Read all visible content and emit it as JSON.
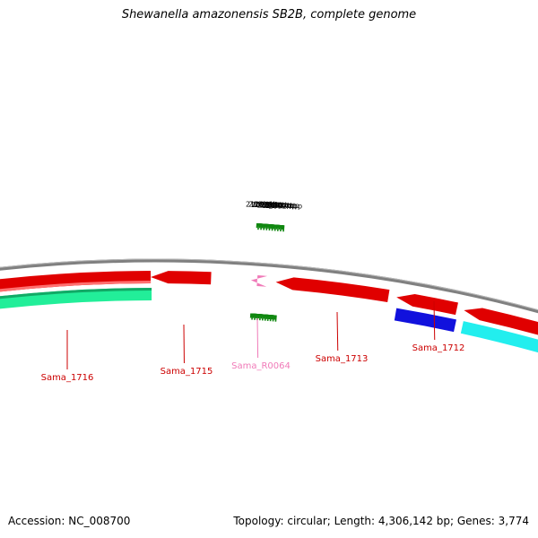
{
  "title": "Shewanella amazonensis SB2B, complete genome",
  "footer": {
    "accession": "Accession: NC_008700",
    "info": "Topology: circular; Length: 4,306,142 bp; Genes: 3,774"
  },
  "colors": {
    "backbone": "#808080",
    "tick": "#118811",
    "gene_forward": "#e00000",
    "gene_reverse_teal": "#22ee99",
    "gene_reverse_cyan": "#22eeee",
    "gene_blue": "#1111dd",
    "rna": "#f07ab8",
    "label_gene": "#cc0000",
    "label_rna": "#f07ab8"
  },
  "scale": {
    "unit": "kbp",
    "labels": [
      {
        "kbp": 2100,
        "text": "2100 kbp"
      },
      {
        "kbp": 2099,
        "text": "2099 kbp"
      },
      {
        "kbp": 2098,
        "text": "2098 kbp"
      },
      {
        "kbp": 2097,
        "text": "2097 kbp"
      },
      {
        "kbp": 2096,
        "text": "2096 kbp"
      },
      {
        "kbp": 2095,
        "text": "2095 kbp"
      },
      {
        "kbp": 2094,
        "text": "2094 kbp"
      },
      {
        "kbp": 2093,
        "text": "2093 kbp"
      },
      {
        "kbp": 2092,
        "text": "2092 kbp"
      }
    ]
  },
  "genes": [
    {
      "label": "Sama_1716",
      "type": "gene",
      "strand": "forward"
    },
    {
      "label": "Sama_1715",
      "type": "gene",
      "strand": "forward"
    },
    {
      "label": "Sama_R0064",
      "type": "rna",
      "strand": "forward"
    },
    {
      "label": "Sama_1713",
      "type": "gene",
      "strand": "forward"
    },
    {
      "label": "Sama_1712",
      "type": "gene",
      "strand": "forward"
    }
  ]
}
